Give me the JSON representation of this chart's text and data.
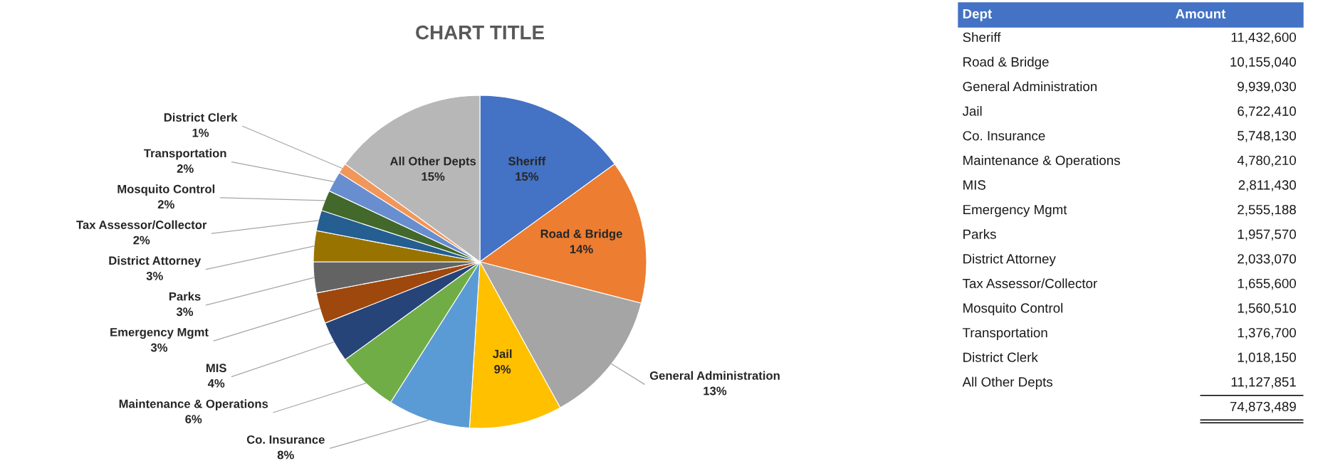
{
  "chart_data": [
    {
      "type": "pie",
      "title": "CHART TITLE",
      "categories": [
        "Sheriff",
        "Road & Bridge",
        "General Administration",
        "Jail",
        "Co. Insurance",
        "Maintenance & Operations",
        "MIS",
        "Emergency Mgmt",
        "Parks",
        "District Attorney",
        "Tax Assessor/Collector",
        "Mosquito Control",
        "Transportation",
        "District Clerk",
        "All Other Depts"
      ],
      "values": [
        15,
        14,
        13,
        9,
        8,
        6,
        4,
        3,
        3,
        3,
        2,
        2,
        2,
        1,
        15
      ],
      "colors": [
        "#4472c4",
        "#ed7d31",
        "#a5a5a5",
        "#ffc000",
        "#5b9bd5",
        "#70ad47",
        "#264478",
        "#9e480e",
        "#636363",
        "#997300",
        "#255e91",
        "#43682b",
        "#698ed0",
        "#f1975a",
        "#b7b7b7"
      ],
      "value_labels": [
        "15%",
        "14%",
        "13%",
        "9%",
        "8%",
        "6%",
        "4%",
        "3%",
        "3%",
        "3%",
        "2%",
        "2%",
        "2%",
        "1%",
        "15%"
      ],
      "legend": false
    },
    {
      "type": "other",
      "categories": [
        "Sheriff",
        "Road & Bridge",
        "General Administration",
        "Jail",
        "Co. Insurance",
        "Maintenance & Operations",
        "MIS",
        "Emergency Mgmt",
        "Parks",
        "District Attorney",
        "Tax Assessor/Collector",
        "Mosquito Control",
        "Transportation",
        "District Clerk",
        "All Other Depts"
      ],
      "values": [
        11432600,
        10155040,
        9939030,
        6722410,
        5748130,
        4780210,
        2811430,
        2555188,
        1957570,
        2033070,
        1655600,
        1560510,
        1376700,
        1018150,
        11127851
      ],
      "value_labels": [
        "11,432,600",
        "10,155,040",
        "9,939,030",
        "6,722,410",
        "5,748,130",
        "4,780,210",
        "2,811,430",
        "2,555,188",
        "1,957,570",
        "2,033,070",
        "1,655,600",
        "1,560,510",
        "1,376,700",
        "1,018,150",
        "11,127,851"
      ],
      "annotations": [
        "Dept",
        "Amount",
        "74,873,489"
      ]
    }
  ]
}
